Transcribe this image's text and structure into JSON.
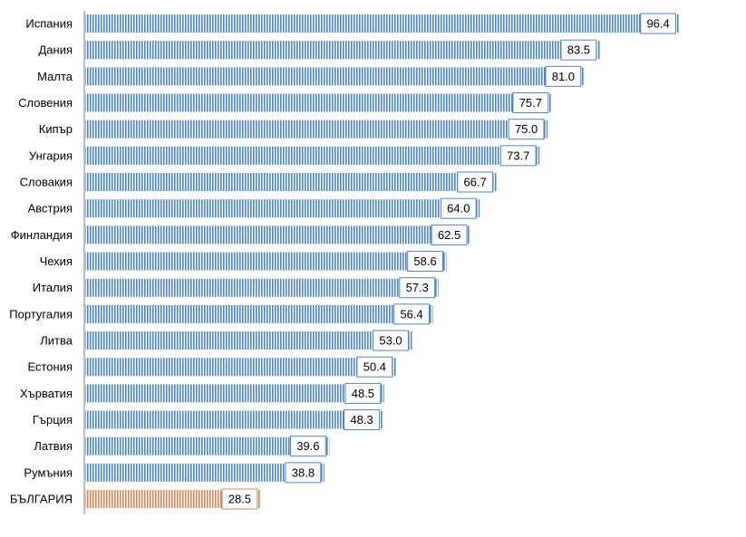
{
  "chart_data": {
    "type": "bar",
    "orientation": "horizontal",
    "categories": [
      "Испания",
      "Дания",
      "Малта",
      "Словения",
      "Кипър",
      "Унгария",
      "Словакия",
      "Австрия",
      "Финландия",
      "Чехия",
      "Италия",
      "Португалия",
      "Литва",
      "Естония",
      "Хърватия",
      "Гърция",
      "Латвия",
      "Румъния",
      "БЪЛГАРИЯ"
    ],
    "values": [
      96.4,
      83.5,
      81.0,
      75.7,
      75.0,
      73.7,
      66.7,
      64.0,
      62.5,
      58.6,
      57.3,
      56.4,
      53.0,
      50.4,
      48.5,
      48.3,
      39.6,
      38.8,
      28.5
    ],
    "value_labels": [
      "96.4",
      "83.5",
      "81.0",
      "75.7",
      "75.0",
      "73.7",
      "66.7",
      "64.0",
      "62.5",
      "58.6",
      "57.3",
      "56.4",
      "53.0",
      "50.4",
      "48.5",
      "48.3",
      "39.6",
      "38.8",
      "28.5"
    ],
    "highlight_category": "БЪЛГАРИЯ",
    "xlim": [
      0,
      100
    ],
    "title": "",
    "xlabel": "",
    "ylabel": "",
    "grid": false,
    "legend": "none",
    "colors": {
      "bar": "#4a86cf",
      "bar_highlight": "#d9875a",
      "label_border": "#4a86cf",
      "label_border_highlight": "#d9875a",
      "axis": "#bfbfbf"
    }
  }
}
